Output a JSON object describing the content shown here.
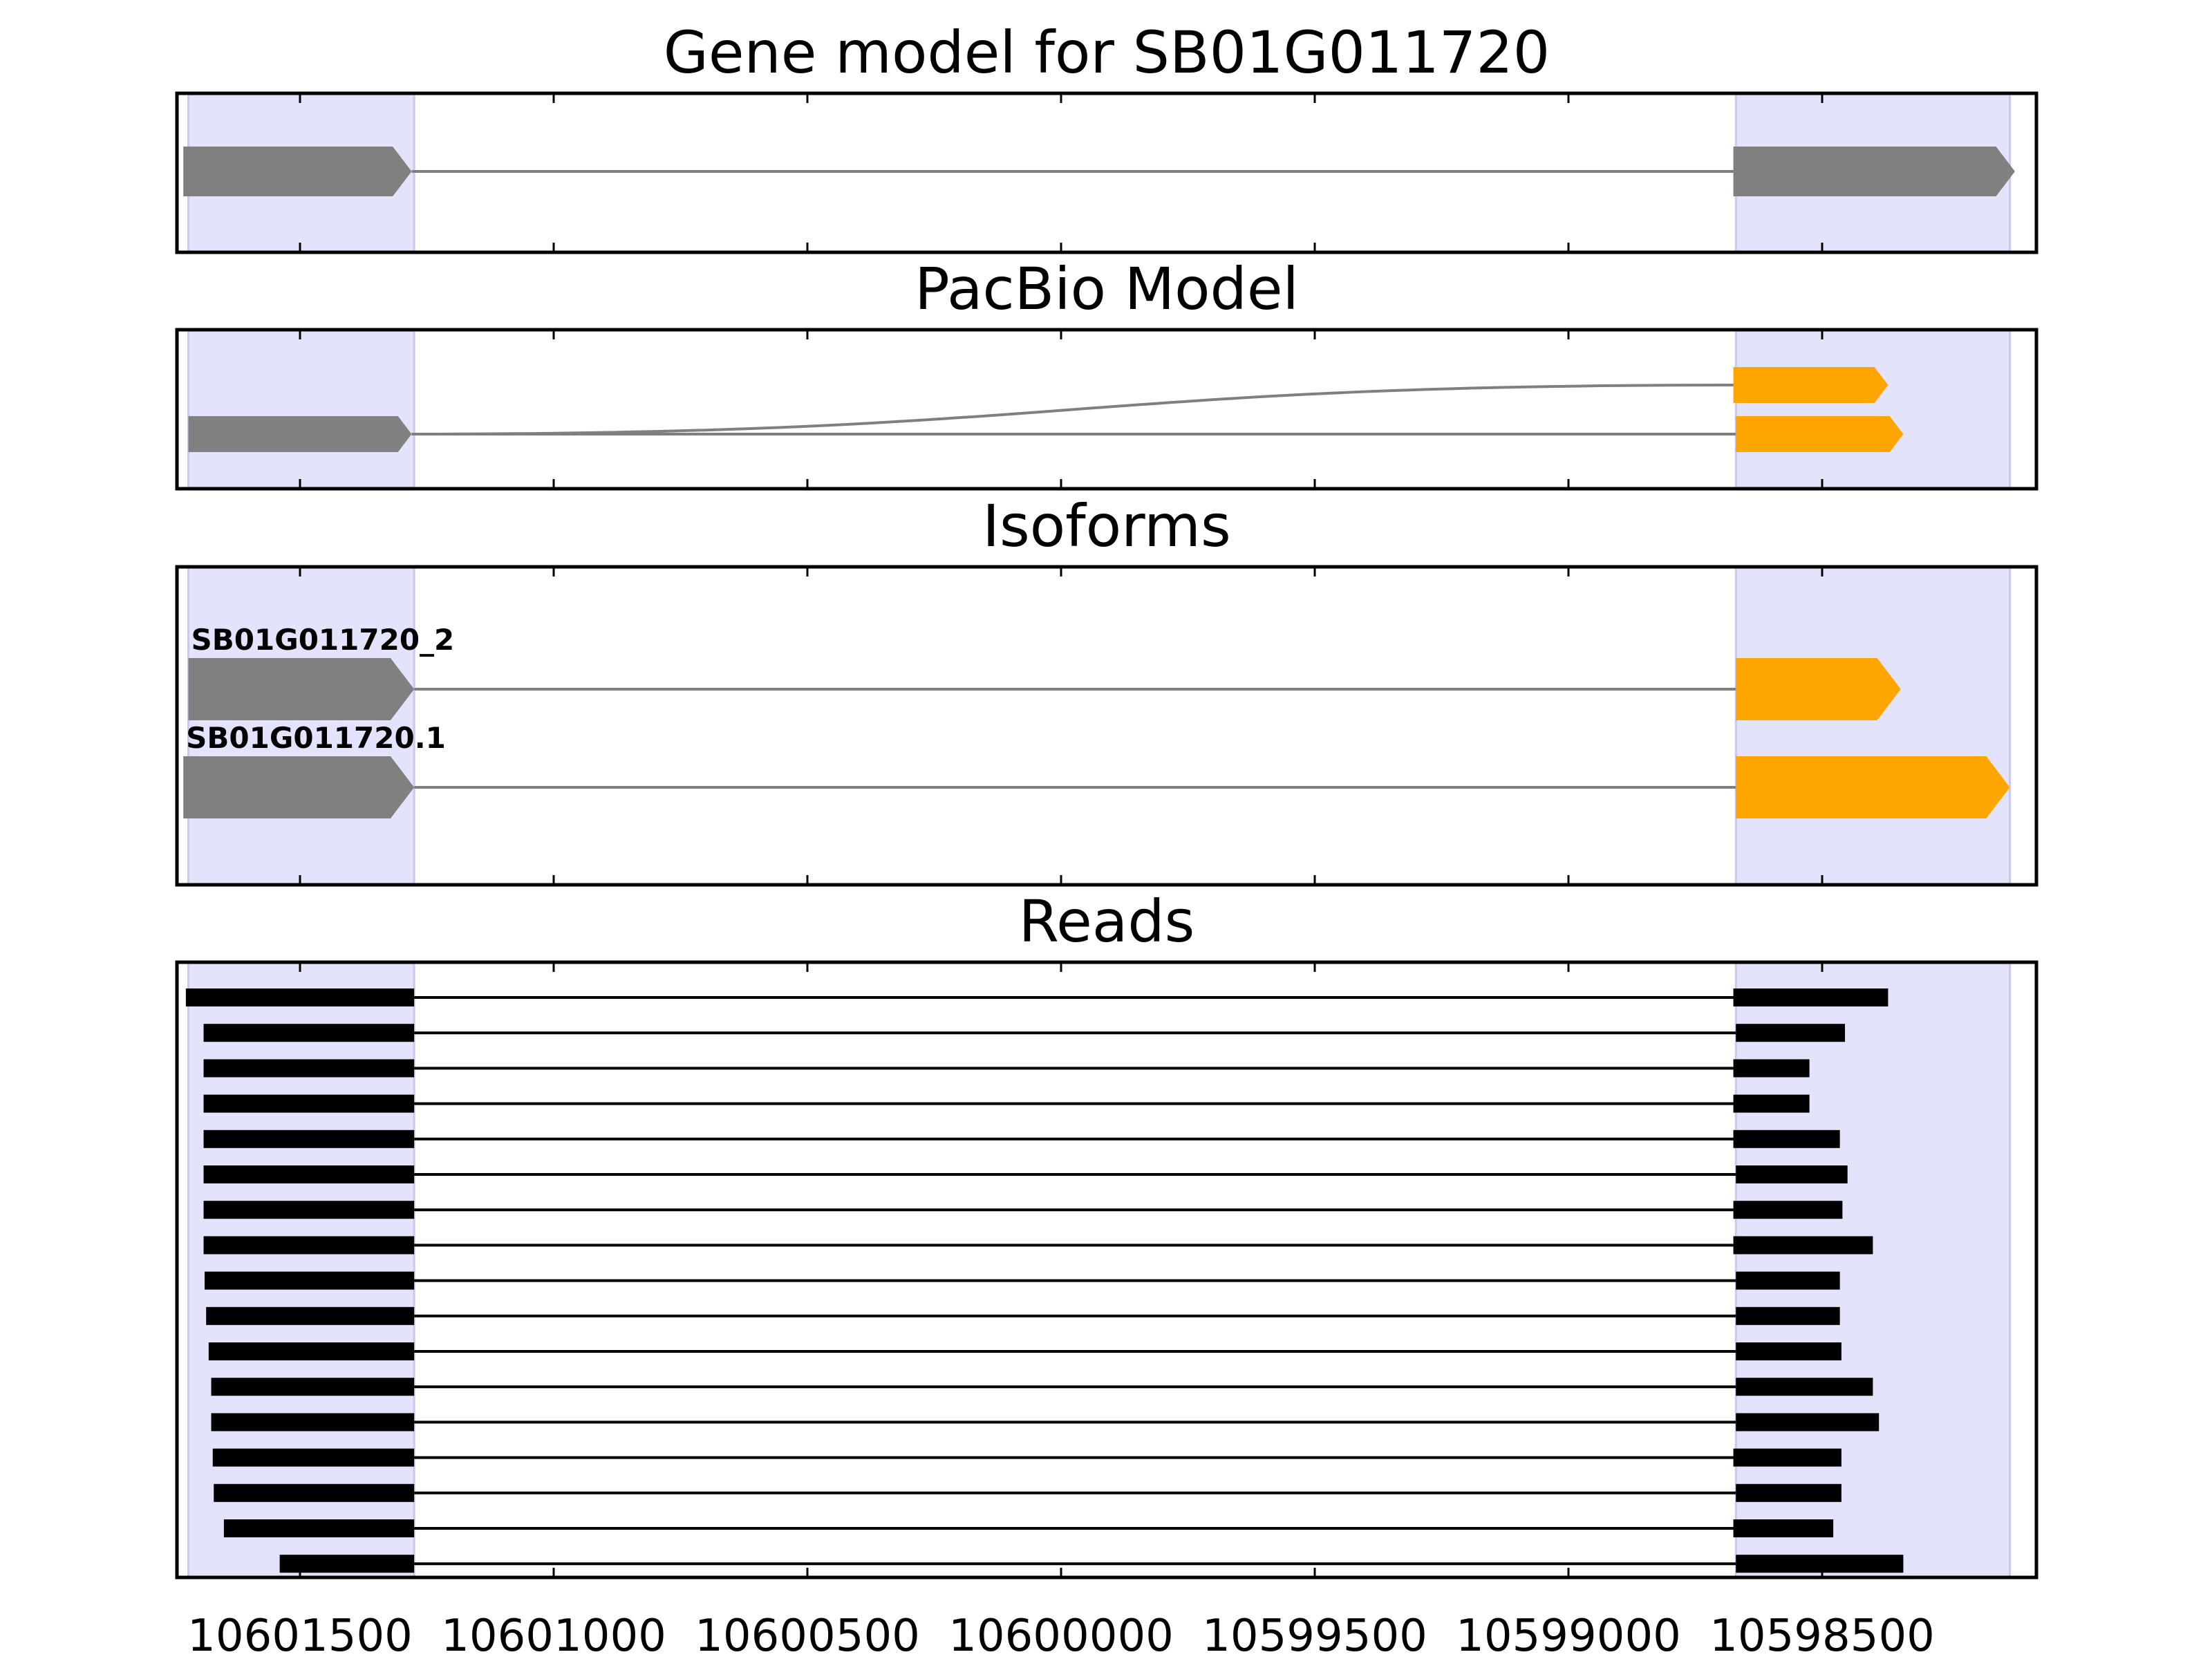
{
  "chart_data": {
    "type": "gene-track",
    "x_axis": {
      "reversed": true,
      "ticks": [
        10601500,
        10601000,
        10600500,
        10600000,
        10599500,
        10599000,
        10598500
      ],
      "tick_labels": [
        "10601500",
        "10601000",
        "10600500",
        "10600000",
        "10599500",
        "10599000",
        "10598500"
      ]
    },
    "exon_regions": [
      [
        10601720,
        10601275
      ],
      [
        10598670,
        10598130
      ]
    ],
    "colors": {
      "region_shade": "#e3e3fb",
      "gene_model": "#808080",
      "pacbio_first_exon": "#808080",
      "pacbio_last_exon": "#ffa500",
      "intron": "#7f7f7f",
      "read": "#000000"
    },
    "panels": [
      {
        "id": "gene-model",
        "title": "Gene model for SB01G011720",
        "tracks": [
          {
            "exons": [
              [
                10601730,
                10601280
              ],
              [
                10598675,
                10598120
              ]
            ],
            "arrow": true
          }
        ]
      },
      {
        "id": "pacbio-model",
        "title": "PacBio Model",
        "tracks": [
          {
            "exons": [
              [
                10601720,
                10601280
              ],
              [
                10598675,
                10598370
              ]
            ],
            "arrow": true,
            "split_intron": true
          },
          {
            "exons": [
              [
                10601720,
                10601280
              ],
              [
                10598670,
                10598340
              ]
            ],
            "arrow": true
          }
        ]
      },
      {
        "id": "isoforms",
        "title": "Isoforms",
        "tracks": [
          {
            "label": "SB01G011720_2",
            "exons": [
              [
                10601720,
                10601275
              ],
              [
                10598670,
                10598345
              ]
            ],
            "arrow": true
          },
          {
            "label": "SB01G011720.1",
            "exons": [
              [
                10601730,
                10601275
              ],
              [
                10598670,
                10598130
              ]
            ],
            "arrow": true
          }
        ]
      },
      {
        "id": "reads",
        "title": "Reads",
        "tracks": [
          {
            "exons": [
              [
                10601725,
                10601275
              ],
              [
                10598675,
                10598370
              ]
            ]
          },
          {
            "exons": [
              [
                10601690,
                10601275
              ],
              [
                10598670,
                10598455
              ]
            ]
          },
          {
            "exons": [
              [
                10601690,
                10601275
              ],
              [
                10598675,
                10598525
              ]
            ]
          },
          {
            "exons": [
              [
                10601690,
                10601275
              ],
              [
                10598675,
                10598525
              ]
            ]
          },
          {
            "exons": [
              [
                10601690,
                10601275
              ],
              [
                10598675,
                10598465
              ]
            ]
          },
          {
            "exons": [
              [
                10601690,
                10601275
              ],
              [
                10598670,
                10598450
              ]
            ]
          },
          {
            "exons": [
              [
                10601690,
                10601275
              ],
              [
                10598675,
                10598460
              ]
            ]
          },
          {
            "exons": [
              [
                10601690,
                10601275
              ],
              [
                10598675,
                10598400
              ]
            ]
          },
          {
            "exons": [
              [
                10601688,
                10601275
              ],
              [
                10598670,
                10598465
              ]
            ]
          },
          {
            "exons": [
              [
                10601685,
                10601275
              ],
              [
                10598670,
                10598465
              ]
            ]
          },
          {
            "exons": [
              [
                10601680,
                10601275
              ],
              [
                10598670,
                10598462
              ]
            ]
          },
          {
            "exons": [
              [
                10601675,
                10601275
              ],
              [
                10598670,
                10598400
              ]
            ]
          },
          {
            "exons": [
              [
                10601675,
                10601275
              ],
              [
                10598670,
                10598388
              ]
            ]
          },
          {
            "exons": [
              [
                10601672,
                10601275
              ],
              [
                10598675,
                10598462
              ]
            ]
          },
          {
            "exons": [
              [
                10601670,
                10601275
              ],
              [
                10598670,
                10598462
              ]
            ]
          },
          {
            "exons": [
              [
                10601650,
                10601275
              ],
              [
                10598675,
                10598478
              ]
            ]
          },
          {
            "exons": [
              [
                10601540,
                10601275
              ],
              [
                10598670,
                10598340
              ]
            ]
          }
        ]
      }
    ]
  }
}
